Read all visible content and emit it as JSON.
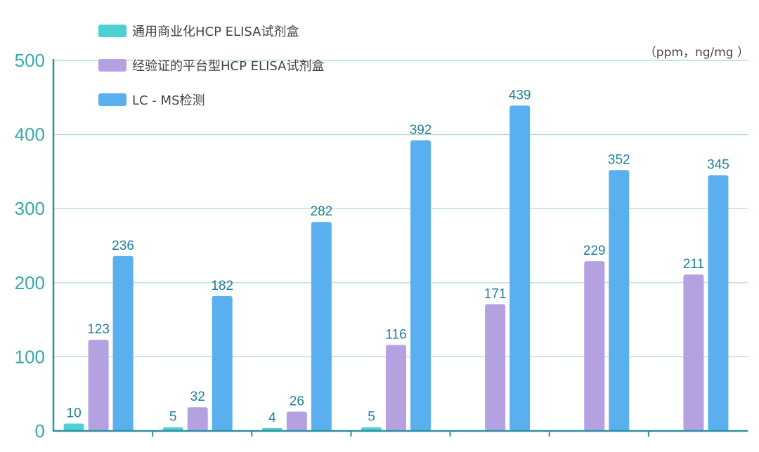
{
  "chart_data": {
    "type": "bar",
    "unit_label": "（ppm，ng/mg ）",
    "ylim": [
      0,
      500
    ],
    "yticks": [
      "0",
      "100",
      "200",
      "300",
      "400",
      "500"
    ],
    "grid": true,
    "legend_position": "top-left",
    "categories": [
      "",
      "",
      "",
      "",
      "",
      "",
      ""
    ],
    "series": [
      {
        "name": "通用商业化HCP ELISA试剂盒",
        "color": "#4ecfd3",
        "values": [
          10,
          5,
          4,
          5,
          null,
          null,
          null
        ]
      },
      {
        "name": "经验证的平台型HCP ELISA试剂盒",
        "color": "#b4a2e0",
        "values": [
          123,
          32,
          26,
          116,
          171,
          229,
          211
        ]
      },
      {
        "name": "LC - MS检测",
        "color": "#5aafef",
        "values": [
          236,
          182,
          282,
          392,
          439,
          352,
          345
        ]
      }
    ]
  }
}
